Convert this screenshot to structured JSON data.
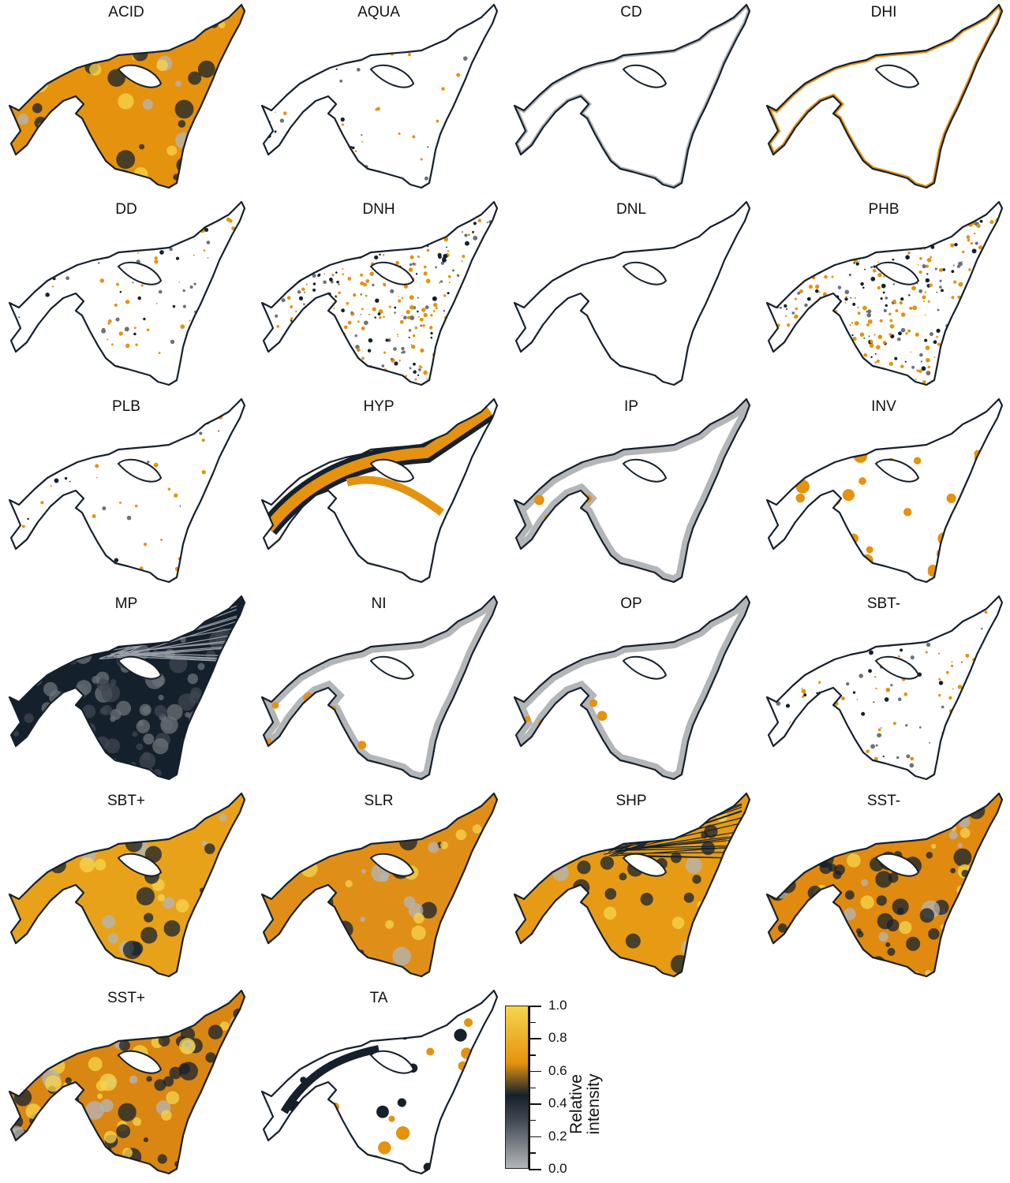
{
  "panels": [
    {
      "name": "ACID",
      "style": "fill"
    },
    {
      "name": "AQUA",
      "style": "sparse"
    },
    {
      "name": "CD",
      "style": "coast-gray"
    },
    {
      "name": "DHI",
      "style": "coast-orange"
    },
    {
      "name": "DD",
      "style": "patches"
    },
    {
      "name": "DNH",
      "style": "speckle"
    },
    {
      "name": "DNL",
      "style": "outline"
    },
    {
      "name": "PHB",
      "style": "speckle-light"
    },
    {
      "name": "PLB",
      "style": "sparse-light"
    },
    {
      "name": "HYP",
      "style": "bands"
    },
    {
      "name": "IP",
      "style": "halo"
    },
    {
      "name": "INV",
      "style": "coast-spots"
    },
    {
      "name": "MP",
      "style": "dark-fill"
    },
    {
      "name": "NI",
      "style": "halo"
    },
    {
      "name": "OP",
      "style": "halo"
    },
    {
      "name": "SBT-",
      "style": "patches-dark"
    },
    {
      "name": "SBT+",
      "style": "fill-mixed"
    },
    {
      "name": "SLR",
      "style": "fill-flat"
    },
    {
      "name": "SHP",
      "style": "fill-lines"
    },
    {
      "name": "SST-",
      "style": "fill-dark"
    },
    {
      "name": "SST+",
      "style": "fill-dark2"
    },
    {
      "name": "TA",
      "style": "ta"
    }
  ],
  "legend": {
    "title_line1": "Relative",
    "title_line2": "intensity",
    "ticks": [
      "1.0",
      "0.8",
      "0.6",
      "0.4",
      "0.2",
      "0.0"
    ],
    "colors": [
      "#b3b6b9",
      "#3f4750",
      "#15202d",
      "#e5920f",
      "#f6d54e"
    ]
  }
}
